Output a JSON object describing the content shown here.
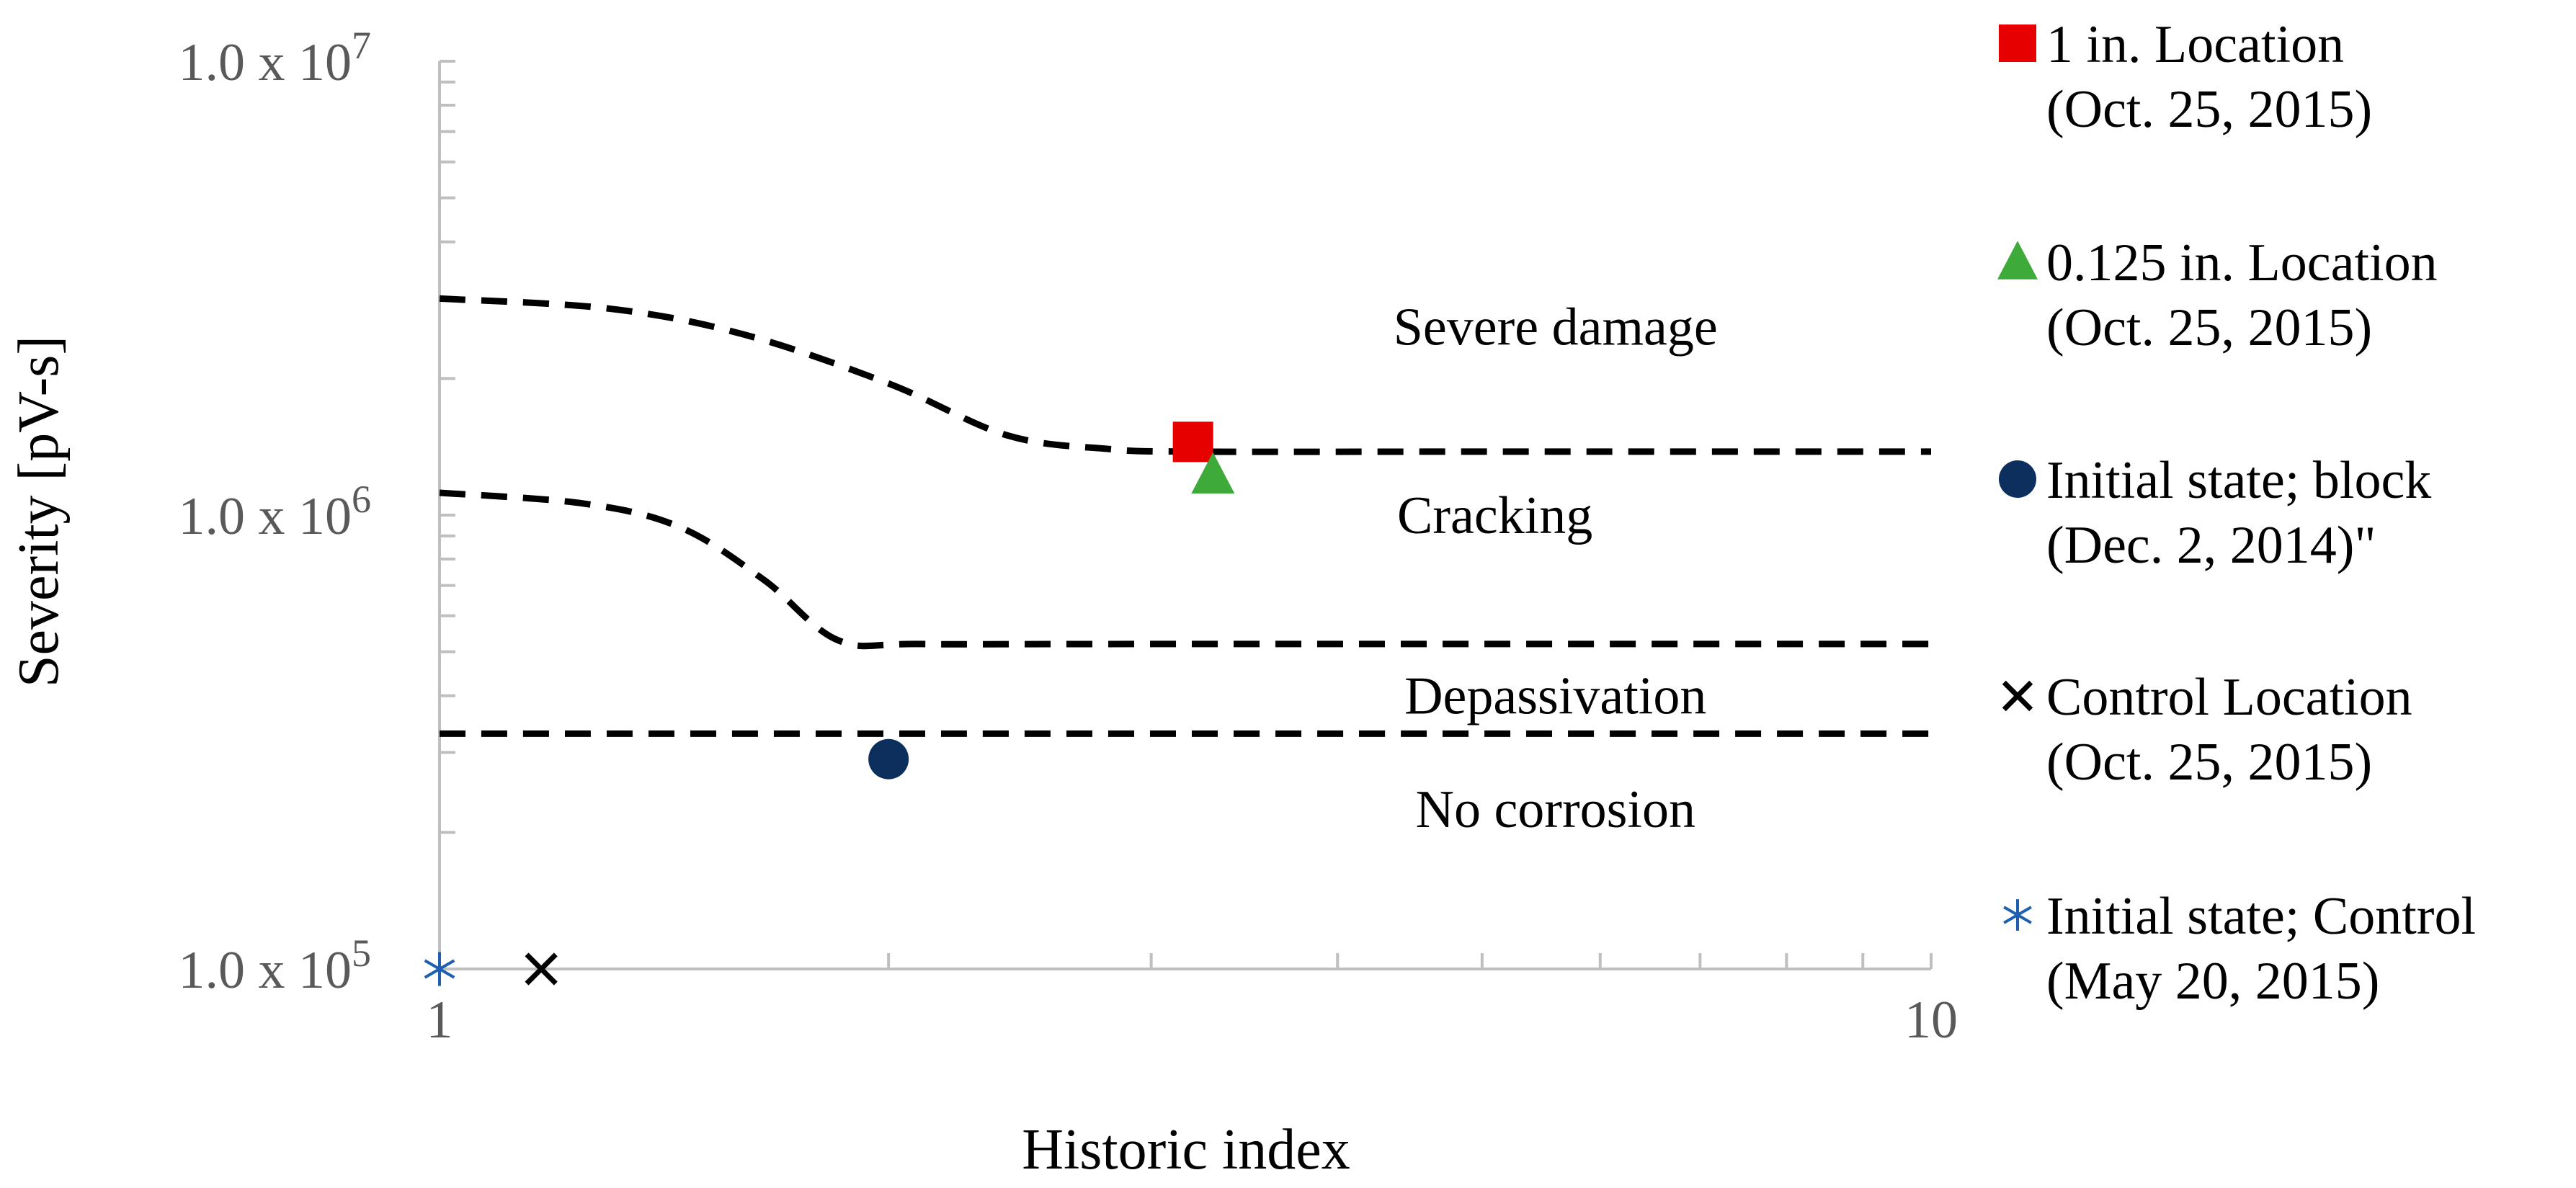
{
  "chart_data": {
    "type": "scatter",
    "title": "",
    "xlabel": "Historic index",
    "ylabel": "Severity [pV-s]",
    "xscale": "log",
    "yscale": "log",
    "xlim": [
      1,
      10
    ],
    "ylim": [
      100000,
      10000000
    ],
    "x_tick_labels": [
      {
        "value": 1,
        "label": "1"
      },
      {
        "value": 10,
        "label": "10"
      }
    ],
    "y_tick_labels": [
      {
        "value": 100000,
        "mantissa": "1.0 x 10",
        "exp": "5"
      },
      {
        "value": 1000000,
        "mantissa": "1.0 x 10",
        "exp": "6"
      },
      {
        "value": 10000000,
        "mantissa": "1.0 x 10",
        "exp": "7"
      }
    ],
    "grid": false,
    "legend_position": "right",
    "series": [
      {
        "name_line1": "1 in. Location",
        "name_line2": "(Oct. 25, 2015)",
        "marker": "square",
        "color": "#E60000",
        "points": [
          [
            3.2,
            1450000
          ]
        ]
      },
      {
        "name_line1": "0.125 in. Location",
        "name_line2": "(Oct. 25, 2015)",
        "marker": "triangle",
        "color": "#3EAA3A",
        "points": [
          [
            3.3,
            1230000
          ]
        ]
      },
      {
        "name_line1": "Initial state; block",
        "name_line2": "(Dec. 2, 2014)\"",
        "marker": "circle",
        "color": "#0D2F5E",
        "points": [
          [
            2.0,
            290000
          ]
        ]
      },
      {
        "name_line1": "Control Location",
        "name_line2": "(Oct. 25, 2015)",
        "marker": "x",
        "color": "#000000",
        "points": [
          [
            1.17,
            100000
          ]
        ]
      },
      {
        "name_line1": "Initial state; Control",
        "name_line2": "(May 20, 2015)",
        "marker": "asterisk",
        "color": "#1F5FAF",
        "points": [
          [
            1.0,
            100000
          ]
        ]
      }
    ],
    "threshold_curves": [
      {
        "name": "severe-damage-boundary",
        "points": [
          [
            1.0,
            3000000
          ],
          [
            1.3,
            2850000
          ],
          [
            1.6,
            2500000
          ],
          [
            2.0,
            1950000
          ],
          [
            2.4,
            1500000
          ],
          [
            2.8,
            1400000
          ],
          [
            3.2,
            1380000
          ],
          [
            5.0,
            1380000
          ],
          [
            10.0,
            1380000
          ]
        ]
      },
      {
        "name": "cracking-boundary",
        "points": [
          [
            1.0,
            1120000
          ],
          [
            1.25,
            1060000
          ],
          [
            1.45,
            940000
          ],
          [
            1.65,
            720000
          ],
          [
            1.85,
            530000
          ],
          [
            2.1,
            520000
          ],
          [
            3.0,
            520000
          ],
          [
            10.0,
            520000
          ]
        ]
      },
      {
        "name": "depassivation-boundary",
        "points": [
          [
            1.0,
            330000
          ],
          [
            10.0,
            330000
          ]
        ]
      }
    ],
    "annotations": [
      {
        "text": "Severe damage",
        "x": 5.6,
        "y": 2600000
      },
      {
        "text": "Cracking",
        "x": 5.1,
        "y": 1000000
      },
      {
        "text": "Depassivation",
        "x": 5.6,
        "y": 400000
      },
      {
        "text": "No corrosion",
        "x": 5.6,
        "y": 225000
      }
    ]
  }
}
